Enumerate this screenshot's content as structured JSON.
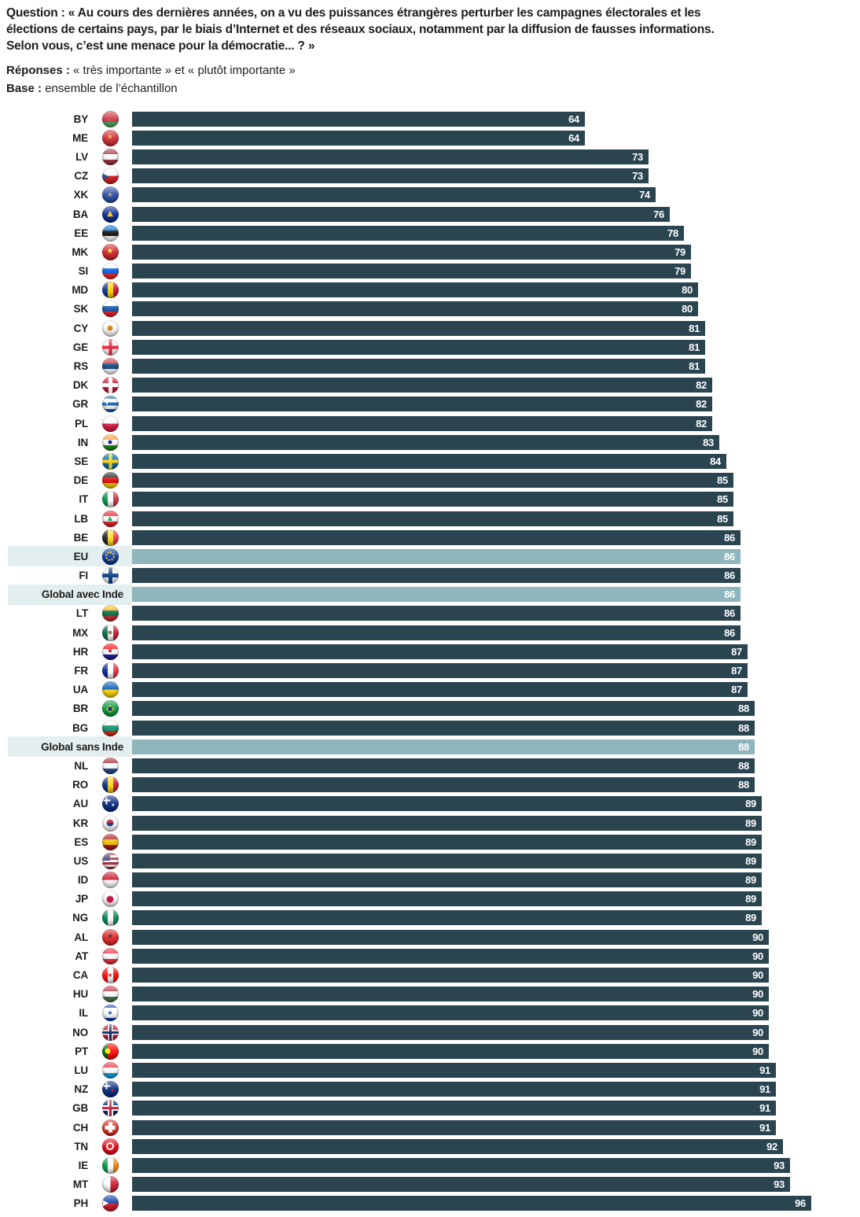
{
  "header": {
    "question_lines": {
      "0": "Question : « Au cours des dernières années, on a vu des puissances étrangères perturber les campagnes électorales et les",
      "1": "élections de certains pays, par le biais d’Internet et des réseaux sociaux, notamment par la diffusion de fausses informations.",
      "2": "Selon vous, c’est une menace pour la démocratie...  ? »"
    },
    "responses_label": "Réponses :",
    "responses_text": "« très importante » et « plutôt importante »",
    "base_label": "Base :",
    "base_text": "ensemble de l’échantillon"
  },
  "colors": {
    "bar": "#2a4450",
    "highlight_bar": "#8fb5bd",
    "highlight_band": "#e3eeef",
    "label_text": "#1d1d1b",
    "value_text": "#ffffff"
  },
  "chart_data": {
    "type": "bar",
    "orientation": "horizontal",
    "xlim": [
      0,
      100
    ],
    "grid": false,
    "legend": "none",
    "value_unit": "percent",
    "rows": [
      {
        "label": "BY",
        "value": 64,
        "flag": {
          "d": "h",
          "s": [
            "#cf3341",
            "#cf3341",
            "#4aa657"
          ]
        }
      },
      {
        "label": "ME",
        "value": 64,
        "flag": {
          "d": "h",
          "s": [
            "#d3272e"
          ],
          "em": [
            {
              "t": "char",
              "g": "★",
              "c": "#d9b43c",
              "s": 9
            }
          ]
        }
      },
      {
        "label": "LV",
        "value": 73,
        "flag": {
          "d": "h",
          "s": [
            "#9d2f3c",
            "#ffffff",
            "#9d2f3c"
          ]
        }
      },
      {
        "label": "CZ",
        "value": 73,
        "flag": {
          "d": "h",
          "s": [
            "#ffffff",
            "#d7141a"
          ],
          "em": [
            {
              "t": "char",
              "g": "▶",
              "c": "#11457e",
              "s": 11,
              "x": "24%"
            }
          ]
        }
      },
      {
        "label": "XK",
        "value": 74,
        "flag": {
          "d": "h",
          "s": [
            "#244aa5"
          ],
          "em": [
            {
              "t": "char",
              "g": "★",
              "c": "#d0a650",
              "s": 8
            }
          ]
        }
      },
      {
        "label": "BA",
        "value": 76,
        "flag": {
          "d": "h",
          "s": [
            "#002395"
          ],
          "em": [
            {
              "t": "char",
              "g": "▲",
              "c": "#fecb00",
              "s": 10
            }
          ]
        }
      },
      {
        "label": "EE",
        "value": 78,
        "flag": {
          "d": "h",
          "s": [
            "#0072ce",
            "#0b0b0b",
            "#ffffff"
          ]
        }
      },
      {
        "label": "MK",
        "value": 79,
        "flag": {
          "d": "h",
          "s": [
            "#ce2028"
          ],
          "em": [
            {
              "t": "char",
              "g": "★",
              "c": "#f8e92e",
              "s": 10
            }
          ]
        }
      },
      {
        "label": "SI",
        "value": 79,
        "flag": {
          "d": "h",
          "s": [
            "#ffffff",
            "#005ce5",
            "#ed1c24"
          ]
        }
      },
      {
        "label": "MD",
        "value": 80,
        "flag": {
          "d": "v",
          "s": [
            "#00319c",
            "#ffd200",
            "#cc092f"
          ]
        }
      },
      {
        "label": "SK",
        "value": 80,
        "flag": {
          "d": "h",
          "s": [
            "#ffffff",
            "#0b4ea2",
            "#ee1c25"
          ]
        }
      },
      {
        "label": "CY",
        "value": 81,
        "flag": {
          "d": "h",
          "s": [
            "#ffffff"
          ],
          "em": [
            {
              "t": "dot",
              "bg": "#d57800",
              "s": 7
            }
          ]
        }
      },
      {
        "label": "GE",
        "value": 81,
        "flag": {
          "d": "h",
          "s": [
            "#ffffff"
          ],
          "em": [
            {
              "t": "cross",
              "c": "#e8112d",
              "w": 4
            }
          ]
        }
      },
      {
        "label": "RS",
        "value": 81,
        "flag": {
          "d": "h",
          "s": [
            "#c6363c",
            "#0c4076",
            "#ffffff"
          ]
        }
      },
      {
        "label": "DK",
        "value": 82,
        "flag": {
          "d": "h",
          "s": [
            "#c8102e"
          ],
          "em": [
            {
              "t": "cross",
              "c": "#ffffff",
              "w": 5
            }
          ]
        }
      },
      {
        "label": "GR",
        "value": 82,
        "flag": {
          "d": "h",
          "s": [
            "#0d5eaf",
            "#ffffff",
            "#0d5eaf",
            "#ffffff",
            "#0d5eaf"
          ],
          "em": [
            {
              "t": "cross",
              "c": "#ffffff",
              "w": 2,
              "s": 8,
              "x": "30%",
              "y": "30%"
            }
          ]
        }
      },
      {
        "label": "PL",
        "value": 82,
        "flag": {
          "d": "h",
          "s": [
            "#ffffff",
            "#dc143c"
          ]
        }
      },
      {
        "label": "IN",
        "value": 83,
        "flag": {
          "d": "h",
          "s": [
            "#ff9933",
            "#ffffff",
            "#138808"
          ],
          "em": [
            {
              "t": "dot",
              "bg": "#000088",
              "s": 5
            }
          ]
        }
      },
      {
        "label": "SE",
        "value": 84,
        "flag": {
          "d": "h",
          "s": [
            "#006aa7"
          ],
          "em": [
            {
              "t": "cross",
              "c": "#fecc00",
              "w": 4
            }
          ]
        }
      },
      {
        "label": "DE",
        "value": 85,
        "flag": {
          "d": "h",
          "s": [
            "#1a1a1a",
            "#dd0000",
            "#ffce00"
          ]
        }
      },
      {
        "label": "IT",
        "value": 85,
        "flag": {
          "d": "v",
          "s": [
            "#009246",
            "#ffffff",
            "#ce2b37"
          ]
        }
      },
      {
        "label": "LB",
        "value": 85,
        "flag": {
          "d": "h",
          "s": [
            "#ed1c24",
            "#ffffff",
            "#ed1c24"
          ],
          "em": [
            {
              "t": "char",
              "g": "▲",
              "c": "#00a850",
              "s": 8
            }
          ]
        }
      },
      {
        "label": "BE",
        "value": 86,
        "flag": {
          "d": "v",
          "s": [
            "#1a1a1a",
            "#fdda24",
            "#ef3340"
          ]
        }
      },
      {
        "label": "EU",
        "value": 86,
        "highlight": true,
        "flag": {
          "d": "h",
          "s": [
            "#003399"
          ],
          "em": [
            {
              "t": "ring",
              "c": "#ffcc00",
              "s": 12
            }
          ]
        }
      },
      {
        "label": "FI",
        "value": 86,
        "flag": {
          "d": "h",
          "s": [
            "#ffffff"
          ],
          "em": [
            {
              "t": "cross",
              "c": "#003580",
              "w": 5
            }
          ]
        }
      },
      {
        "label": "Global avec Inde",
        "value": 86,
        "highlight": true,
        "flag": null
      },
      {
        "label": "LT",
        "value": 86,
        "flag": {
          "d": "h",
          "s": [
            "#fdb913",
            "#006a44",
            "#c1272d"
          ]
        }
      },
      {
        "label": "MX",
        "value": 86,
        "flag": {
          "d": "v",
          "s": [
            "#006847",
            "#ffffff",
            "#ce1126"
          ],
          "em": [
            {
              "t": "dot",
              "bg": "#8a6d3b",
              "s": 5
            }
          ]
        }
      },
      {
        "label": "HR",
        "value": 87,
        "flag": {
          "d": "h",
          "s": [
            "#ff0000",
            "#ffffff",
            "#171796"
          ],
          "em": [
            {
              "t": "char",
              "g": "■",
              "c": "#d80027",
              "s": 5
            }
          ]
        }
      },
      {
        "label": "FR",
        "value": 87,
        "flag": {
          "d": "v",
          "s": [
            "#002395",
            "#ffffff",
            "#ed2939"
          ]
        }
      },
      {
        "label": "UA",
        "value": 87,
        "flag": {
          "d": "h",
          "s": [
            "#005bbb",
            "#ffd500"
          ]
        }
      },
      {
        "label": "BR",
        "value": 88,
        "flag": {
          "d": "h",
          "s": [
            "#009c3b"
          ],
          "em": [
            {
              "t": "char",
              "g": "◆",
              "c": "#ffdf00",
              "s": 13
            },
            {
              "t": "dot",
              "bg": "#002776",
              "s": 6
            }
          ]
        }
      },
      {
        "label": "BG",
        "value": 88,
        "flag": {
          "d": "h",
          "s": [
            "#ffffff",
            "#00966e",
            "#d62612"
          ]
        }
      },
      {
        "label": "Global sans Inde",
        "value": 88,
        "highlight": true,
        "flag": null
      },
      {
        "label": "NL",
        "value": 88,
        "flag": {
          "d": "h",
          "s": [
            "#ae1c28",
            "#ffffff",
            "#21468b"
          ]
        }
      },
      {
        "label": "RO",
        "value": 88,
        "flag": {
          "d": "v",
          "s": [
            "#002b7f",
            "#fcd116",
            "#ce1126"
          ]
        }
      },
      {
        "label": "AU",
        "value": 89,
        "flag": {
          "d": "h",
          "s": [
            "#00247d"
          ],
          "em": [
            {
              "t": "cross",
              "c": "#ffffff",
              "w": 2,
              "s": 9,
              "x": "30%",
              "y": "30%"
            },
            {
              "t": "char",
              "g": "★",
              "c": "#ffffff",
              "s": 6,
              "x": "68%",
              "y": "62%"
            }
          ]
        }
      },
      {
        "label": "KR",
        "value": 89,
        "flag": {
          "d": "h",
          "s": [
            "#ffffff"
          ],
          "em": [
            {
              "t": "dot",
              "bg": "linear-gradient(180deg,#c60c30 50%,#003478 50%)",
              "s": 9
            }
          ]
        }
      },
      {
        "label": "ES",
        "value": 89,
        "flag": {
          "d": "h",
          "s": [
            "#aa151b",
            "#f1bf00",
            "#aa151b"
          ]
        }
      },
      {
        "label": "US",
        "value": 89,
        "flag": {
          "d": "h",
          "s": [
            "#b22234",
            "#ffffff",
            "#b22234",
            "#ffffff",
            "#b22234",
            "#ffffff",
            "#b22234"
          ],
          "em": [
            {
              "t": "rect",
              "bg": "#3c3b6e",
              "w": 10,
              "h": 8,
              "x": "28%",
              "y": "28%"
            }
          ]
        }
      },
      {
        "label": "ID",
        "value": 89,
        "flag": {
          "d": "h",
          "s": [
            "#ce1126",
            "#ffffff"
          ]
        }
      },
      {
        "label": "JP",
        "value": 89,
        "flag": {
          "d": "h",
          "s": [
            "#ffffff"
          ],
          "em": [
            {
              "t": "dot",
              "bg": "#bc002d",
              "s": 9
            }
          ]
        }
      },
      {
        "label": "NG",
        "value": 89,
        "flag": {
          "d": "v",
          "s": [
            "#008751",
            "#ffffff",
            "#008751"
          ]
        }
      },
      {
        "label": "AL",
        "value": 90,
        "flag": {
          "d": "h",
          "s": [
            "#e41e20"
          ],
          "em": [
            {
              "t": "char",
              "g": "★",
              "c": "#1a1a1a",
              "s": 9
            }
          ]
        }
      },
      {
        "label": "AT",
        "value": 90,
        "flag": {
          "d": "h",
          "s": [
            "#ed2939",
            "#ffffff",
            "#ed2939"
          ]
        }
      },
      {
        "label": "CA",
        "value": 90,
        "flag": {
          "d": "v",
          "s": [
            "#ff0000",
            "#ffffff",
            "#ff0000"
          ],
          "em": [
            {
              "t": "char",
              "g": "★",
              "c": "#ff0000",
              "s": 8
            }
          ]
        }
      },
      {
        "label": "HU",
        "value": 90,
        "flag": {
          "d": "h",
          "s": [
            "#cd2a3e",
            "#ffffff",
            "#436f4d"
          ]
        }
      },
      {
        "label": "IL",
        "value": 90,
        "flag": {
          "d": "h",
          "s": [
            "#0038b8",
            "#ffffff",
            "#ffffff",
            "#ffffff",
            "#0038b8"
          ],
          "em": [
            {
              "t": "char",
              "g": "★",
              "c": "#0038b8",
              "s": 8
            }
          ]
        }
      },
      {
        "label": "NO",
        "value": 90,
        "flag": {
          "d": "h",
          "s": [
            "#ba0c2f"
          ],
          "em": [
            {
              "t": "cross",
              "c": "#ffffff",
              "w": 6
            },
            {
              "t": "cross",
              "c": "#00205b",
              "w": 3
            }
          ]
        }
      },
      {
        "label": "PT",
        "value": 90,
        "flag": {
          "d": "v",
          "s": [
            "#006600",
            "#ff0000",
            "#ff0000"
          ],
          "em": [
            {
              "t": "dot",
              "bg": "#ffe900",
              "s": 7,
              "x": "38%"
            }
          ]
        }
      },
      {
        "label": "LU",
        "value": 91,
        "flag": {
          "d": "h",
          "s": [
            "#ed2939",
            "#ffffff",
            "#00a1de"
          ]
        }
      },
      {
        "label": "NZ",
        "value": 91,
        "flag": {
          "d": "h",
          "s": [
            "#00247d"
          ],
          "em": [
            {
              "t": "cross",
              "c": "#ffffff",
              "w": 2,
              "s": 9,
              "x": "30%",
              "y": "30%"
            },
            {
              "t": "char",
              "g": "★",
              "c": "#cc142b",
              "s": 6,
              "x": "66%",
              "y": "62%"
            }
          ]
        }
      },
      {
        "label": "GB",
        "value": 91,
        "flag": {
          "d": "h",
          "s": [
            "#012169"
          ],
          "em": [
            {
              "t": "cross",
              "c": "#ffffff",
              "w": 7
            },
            {
              "t": "cross",
              "c": "#c8102e",
              "w": 3
            }
          ]
        }
      },
      {
        "label": "CH",
        "value": 91,
        "flag": {
          "d": "h",
          "s": [
            "#da291c"
          ],
          "em": [
            {
              "t": "cross",
              "c": "#ffffff",
              "w": 5,
              "s": 13
            }
          ]
        }
      },
      {
        "label": "TN",
        "value": 92,
        "flag": {
          "d": "h",
          "s": [
            "#e70013"
          ],
          "em": [
            {
              "t": "dot",
              "bg": "#ffffff",
              "s": 10
            },
            {
              "t": "dot",
              "bg": "#e70013",
              "s": 6
            }
          ]
        }
      },
      {
        "label": "IE",
        "value": 93,
        "flag": {
          "d": "v",
          "s": [
            "#009a44",
            "#ffffff",
            "#ff8200"
          ]
        }
      },
      {
        "label": "MT",
        "value": 93,
        "flag": {
          "d": "v",
          "s": [
            "#ffffff",
            "#cf142b"
          ]
        }
      },
      {
        "label": "PH",
        "value": 96,
        "flag": {
          "d": "h",
          "s": [
            "#0038a8",
            "#ce1126"
          ],
          "em": [
            {
              "t": "char",
              "g": "▶",
              "c": "#ffffff",
              "s": 10,
              "x": "24%"
            }
          ]
        }
      }
    ]
  }
}
